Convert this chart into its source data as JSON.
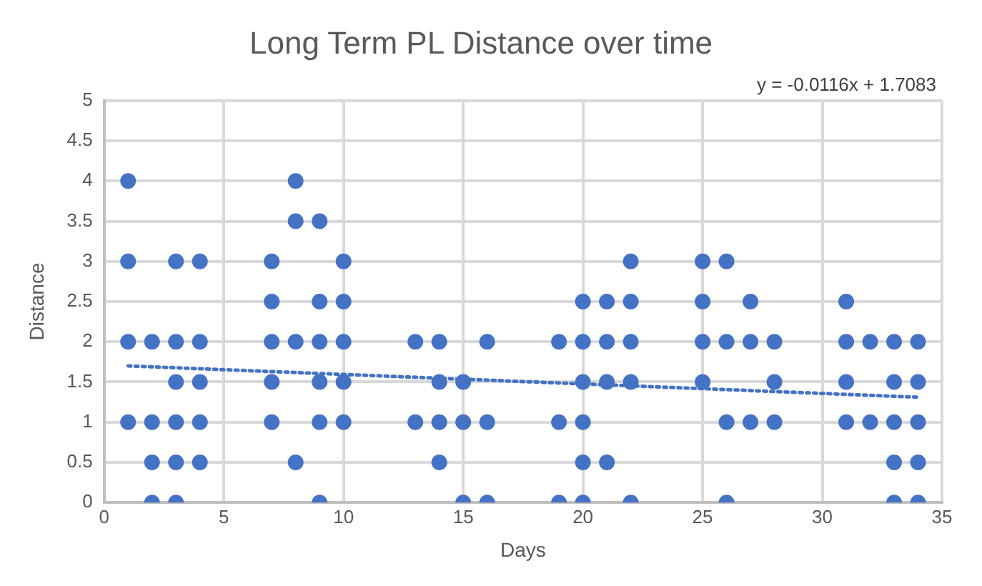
{
  "chart_data": {
    "type": "scatter",
    "title": "Long Term PL Distance over time",
    "xlabel": "Days",
    "ylabel": "Distance",
    "annotations": [
      "y = -0.0116x + 1.7083"
    ],
    "xlim": [
      0,
      35
    ],
    "xticks": [
      0,
      5,
      10,
      15,
      20,
      25,
      30,
      35
    ],
    "ylim": [
      0,
      5
    ],
    "yticks": [
      0,
      0.5,
      1,
      1.5,
      2,
      2.5,
      3,
      3.5,
      4,
      4.5,
      5
    ],
    "grid": true,
    "marker": "circle",
    "series": [
      {
        "color": "#4472c4",
        "x": [
          1,
          1,
          1,
          1,
          2,
          2,
          2,
          2,
          3,
          3,
          3,
          3,
          3,
          3,
          4,
          4,
          4,
          4,
          4,
          7,
          7,
          7,
          7,
          7,
          8,
          8,
          8,
          8,
          9,
          9,
          9,
          9,
          9,
          9,
          10,
          10,
          10,
          10,
          10,
          13,
          13,
          14,
          14,
          14,
          14,
          15,
          15,
          15,
          16,
          16,
          16,
          19,
          19,
          19,
          20,
          20,
          20,
          20,
          20,
          20,
          21,
          21,
          21,
          21,
          22,
          22,
          22,
          22,
          22,
          25,
          25,
          25,
          25,
          26,
          26,
          26,
          26,
          27,
          27,
          27,
          28,
          28,
          28,
          31,
          31,
          31,
          31,
          32,
          32,
          33,
          33,
          33,
          33,
          33,
          34,
          34,
          34,
          34,
          34
        ],
        "values": [
          4,
          3,
          2,
          1,
          2,
          1,
          0.5,
          0,
          3,
          2,
          1.5,
          1,
          0.5,
          0,
          3,
          2,
          1.5,
          1,
          0.5,
          3,
          2.5,
          2,
          1.5,
          1,
          4,
          3.5,
          2,
          0.5,
          3.5,
          2.5,
          2,
          1.5,
          1,
          0,
          3,
          2.5,
          2,
          1.5,
          1,
          2,
          1,
          2,
          1.5,
          1,
          0.5,
          1.5,
          1,
          0,
          2,
          1,
          0,
          2,
          1,
          0,
          2.5,
          2,
          1.5,
          1,
          0.5,
          0,
          2.5,
          2,
          1.5,
          0.5,
          3,
          2.5,
          2,
          1.5,
          0,
          3,
          2.5,
          2,
          1.5,
          3,
          2,
          1,
          0,
          2.5,
          2,
          1,
          2,
          1.5,
          1,
          2.5,
          2,
          1.5,
          1,
          2,
          1,
          2,
          1.5,
          1,
          0.5,
          0,
          2,
          1.5,
          1,
          0.5,
          0
        ]
      },
      {
        "type": "line",
        "color": "#4472c4",
        "line_style": "dotted",
        "marker": "none",
        "x": [
          1,
          34
        ],
        "values": [
          1.7,
          1.31
        ]
      }
    ]
  }
}
